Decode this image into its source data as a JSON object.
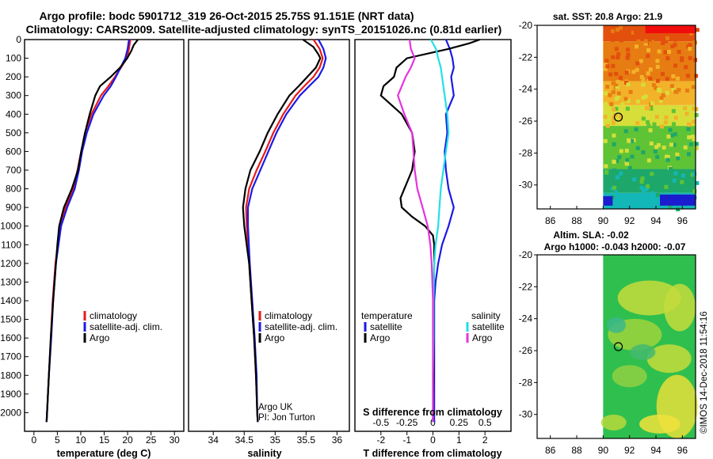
{
  "header": {
    "line1": "Argo profile: bodc 5901712_319 26-Oct-2015 25.75S 91.151E (NRT data)",
    "line2": "Climatology: CARS2009. Satellite-adjusted climatology: synTS_20151026.nc (0.81d earlier)"
  },
  "footer_stamp": "©IMOS 14-Dec-2018 11:54:16",
  "colors": {
    "climatology": "#e8191a",
    "satellite": "#1a1ae6",
    "argo": "#000000",
    "salinity_satellite": "#22e0e6",
    "salinity_argo": "#e633e0"
  },
  "chart_data": [
    {
      "id": "temperature-panel",
      "type": "line",
      "xlabel": "temperature (deg C)",
      "ylabel": "",
      "xlim": [
        -2,
        32
      ],
      "ylim": [
        2100,
        0
      ],
      "xticks": [
        "0",
        "5",
        "10",
        "15",
        "20",
        "25",
        "30"
      ],
      "yticks": [
        "0",
        "100",
        "200",
        "300",
        "400",
        "500",
        "600",
        "700",
        "800",
        "900",
        "1000",
        "1100",
        "1200",
        "1300",
        "1400",
        "1500",
        "1600",
        "1700",
        "1800",
        "1900",
        "2000"
      ],
      "legend": [
        "climatology",
        "satellite-adj. clim.",
        "Argo"
      ],
      "series": [
        {
          "name": "climatology",
          "color": "#e8191a",
          "depth": [
            0,
            50,
            100,
            150,
            200,
            250,
            300,
            400,
            500,
            600,
            700,
            800,
            900,
            1000,
            1200,
            1400,
            1600,
            1800,
            2000,
            2050
          ],
          "values": [
            20.6,
            20.3,
            19.8,
            18.6,
            17.3,
            15.9,
            14.3,
            12.3,
            10.9,
            10.1,
            9.3,
            8.4,
            6.8,
            5.6,
            4.6,
            4.0,
            3.6,
            3.2,
            2.8,
            2.7
          ]
        },
        {
          "name": "satellite-adj. clim.",
          "color": "#1a1ae6",
          "depth": [
            0,
            50,
            100,
            150,
            200,
            250,
            300,
            400,
            500,
            600,
            700,
            800,
            900,
            1000,
            1200,
            1400,
            1600,
            1800,
            2000,
            2050
          ],
          "values": [
            20.3,
            20.0,
            19.5,
            18.5,
            17.5,
            16.4,
            14.9,
            12.7,
            11.3,
            10.3,
            9.6,
            8.7,
            7.1,
            5.8,
            4.7,
            4.1,
            3.7,
            3.2,
            2.8,
            2.7
          ]
        },
        {
          "name": "Argo",
          "color": "#000000",
          "depth": [
            0,
            30,
            60,
            100,
            150,
            200,
            250,
            300,
            400,
            500,
            600,
            700,
            800,
            900,
            1000,
            1100,
            1200,
            1400,
            1600,
            1800,
            2000,
            2050
          ],
          "values": [
            22.2,
            21.3,
            20.8,
            19.9,
            18.4,
            16.4,
            14.1,
            13.1,
            11.9,
            10.9,
            10.1,
            9.4,
            8.1,
            6.4,
            5.4,
            5.0,
            4.7,
            4.1,
            3.6,
            3.2,
            2.8,
            2.7
          ]
        }
      ]
    },
    {
      "id": "salinity-panel",
      "type": "line",
      "xlabel": "salinity",
      "xlim": [
        33.6,
        36.2
      ],
      "ylim": [
        2100,
        0
      ],
      "xticks": [
        "34",
        "34.5",
        "35",
        "35.5",
        "36"
      ],
      "legend": [
        "climatology",
        "satellite-adj. clim.",
        "Argo"
      ],
      "annotation": [
        "Argo UK",
        "PI: Jon Turton"
      ],
      "series": [
        {
          "name": "climatology",
          "color": "#e8191a",
          "depth": [
            0,
            50,
            100,
            150,
            200,
            250,
            300,
            400,
            500,
            600,
            700,
            800,
            900,
            1000,
            1200,
            1400,
            1600,
            1800,
            2000,
            2050
          ],
          "values": [
            35.62,
            35.72,
            35.77,
            35.72,
            35.62,
            35.47,
            35.33,
            35.13,
            34.97,
            34.84,
            34.7,
            34.58,
            34.53,
            34.54,
            34.58,
            34.62,
            34.66,
            34.69,
            34.71,
            34.72
          ]
        },
        {
          "name": "satellite-adj. clim.",
          "color": "#1a1ae6",
          "depth": [
            0,
            50,
            100,
            150,
            200,
            250,
            300,
            400,
            500,
            600,
            700,
            800,
            900,
            1000,
            1200,
            1400,
            1600,
            1800,
            2000,
            2050
          ],
          "values": [
            35.7,
            35.78,
            35.82,
            35.78,
            35.7,
            35.55,
            35.4,
            35.18,
            35.02,
            34.89,
            34.76,
            34.63,
            34.56,
            34.56,
            34.59,
            34.63,
            34.67,
            34.7,
            34.71,
            34.72
          ]
        },
        {
          "name": "Argo",
          "color": "#000000",
          "depth": [
            0,
            40,
            80,
            100,
            150,
            200,
            250,
            300,
            400,
            500,
            600,
            700,
            800,
            900,
            1000,
            1100,
            1200,
            1400,
            1600,
            1800,
            2000,
            2050
          ],
          "values": [
            35.45,
            35.62,
            35.7,
            35.73,
            35.66,
            35.52,
            35.38,
            35.23,
            35.04,
            34.88,
            34.75,
            34.6,
            34.52,
            34.48,
            34.5,
            34.54,
            34.58,
            34.62,
            34.66,
            34.69,
            34.71,
            34.72
          ]
        }
      ]
    },
    {
      "id": "difference-panel",
      "type": "line",
      "xlabel": "T difference from climatology",
      "xlabel_top": "S difference from climatology",
      "xlim": [
        -3,
        3
      ],
      "ylim": [
        2100,
        0
      ],
      "xticks": [
        "-2",
        "-1",
        "0",
        "1",
        "2"
      ],
      "xticks_s": [
        "-0.5",
        "-0.25",
        "0",
        "0.25",
        "0.5"
      ],
      "legend_t_title": "temperature",
      "legend_s_title": "salinity",
      "legend_t": [
        "satellite",
        "Argo"
      ],
      "legend_s": [
        "satellite",
        "Argo"
      ],
      "series": [
        {
          "name": "temperature satellite",
          "color": "#1a1ae6",
          "depth": [
            0,
            50,
            100,
            150,
            200,
            300,
            400,
            500,
            600,
            700,
            800,
            900,
            1000,
            1100,
            1200,
            1300,
            1400,
            1600,
            1800,
            2000,
            2050
          ],
          "values": [
            0.5,
            0.65,
            0.75,
            0.8,
            0.7,
            0.8,
            0.5,
            0.55,
            0.45,
            0.5,
            0.6,
            0.8,
            0.6,
            0.35,
            0.2,
            0.1,
            0.05,
            0.05,
            0.05,
            0.05,
            0.05
          ]
        },
        {
          "name": "temperature Argo",
          "color": "#000000",
          "depth": [
            0,
            20,
            50,
            100,
            150,
            200,
            250,
            300,
            400,
            500,
            600,
            700,
            800,
            850,
            900,
            950,
            1000,
            1050,
            1100,
            1200,
            1400,
            1600,
            1800,
            2000,
            2050
          ],
          "values": [
            1.8,
            1.4,
            0.6,
            -1.0,
            -1.4,
            -1.5,
            -1.9,
            -2.0,
            -1.2,
            -0.8,
            -0.7,
            -0.8,
            -1.1,
            -1.25,
            -1.2,
            -0.8,
            -0.3,
            0.0,
            0.05,
            0.05,
            0.02,
            0.02,
            0.02,
            0.0,
            0.0
          ]
        },
        {
          "name": "salinity satellite",
          "color": "#22e0e6",
          "depth": [
            0,
            50,
            100,
            150,
            200,
            300,
            400,
            500,
            600,
            700,
            800,
            900,
            1000,
            1100,
            1200,
            1400,
            1600,
            1800,
            2000,
            2050
          ],
          "values": [
            -0.08,
            0.12,
            0.2,
            0.3,
            0.35,
            0.45,
            0.55,
            0.6,
            0.5,
            0.4,
            0.3,
            0.25,
            0.2,
            0.1,
            0.05,
            0.02,
            0.02,
            0.0,
            0.0,
            0.0
          ]
        },
        {
          "name": "salinity Argo",
          "color": "#e633e0",
          "depth": [
            0,
            50,
            100,
            150,
            200,
            250,
            300,
            400,
            500,
            600,
            700,
            800,
            900,
            1000,
            1100,
            1200,
            1400,
            1600,
            1800,
            2000,
            2050
          ],
          "values": [
            -0.9,
            -0.85,
            -0.7,
            -0.85,
            -1.05,
            -1.2,
            -1.35,
            -1.1,
            -0.8,
            -0.75,
            -0.7,
            -0.6,
            -0.4,
            -0.2,
            -0.1,
            -0.05,
            0.0,
            0.0,
            0.0,
            0.0,
            0.0
          ]
        }
      ]
    },
    {
      "id": "sst-map",
      "type": "heatmap",
      "title": "sat. SST: 20.8 Argo: 21.9",
      "xlim": [
        85,
        97
      ],
      "ylim": [
        -31.5,
        -20
      ],
      "xticks": [
        "86",
        "88",
        "90",
        "92",
        "94",
        "96"
      ],
      "yticks": [
        "-20",
        "-22",
        "-24",
        "-26",
        "-28",
        "-30"
      ],
      "marker": {
        "lon": 91.15,
        "lat": -25.75
      },
      "bands": [
        {
          "lat_from": -20,
          "lat_to": -21,
          "color": "#e34f0d"
        },
        {
          "lat_from": -21,
          "lat_to": -23.5,
          "color": "#e67c12"
        },
        {
          "lat_from": -23.5,
          "lat_to": -25,
          "color": "#f2b22a"
        },
        {
          "lat_from": -25,
          "lat_to": -26.3,
          "color": "#d7de3a"
        },
        {
          "lat_from": -26.3,
          "lat_to": -29,
          "color": "#5fc336"
        },
        {
          "lat_from": -29,
          "lat_to": -30.5,
          "color": "#1da76a"
        },
        {
          "lat_from": -30.5,
          "lat_to": -31.5,
          "color": "#14b7b7"
        }
      ]
    },
    {
      "id": "sla-map",
      "type": "heatmap",
      "title_line1": "Altim. SLA: -0.02",
      "title_line2": "Argo h1000: -0.043 h2000: -0.07",
      "xlim": [
        85,
        97
      ],
      "ylim": [
        -31.5,
        -20
      ],
      "xticks": [
        "86",
        "88",
        "90",
        "92",
        "94",
        "96"
      ],
      "yticks": [
        "-20",
        "-22",
        "-24",
        "-26",
        "-28",
        "-30"
      ],
      "marker": {
        "lon": 91.15,
        "lat": -25.75
      },
      "base_color": "#2fbf4e"
    }
  ]
}
